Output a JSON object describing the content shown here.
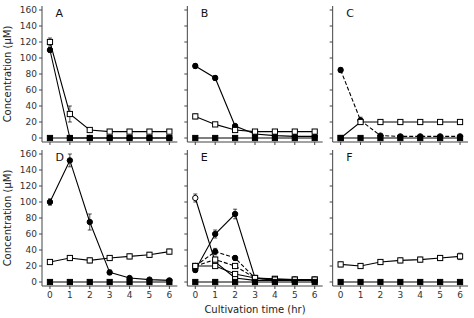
{
  "chart_data": [
    {
      "type": "line",
      "title": "A",
      "ylabel": "Concentration (μM)",
      "x": [
        0,
        1,
        2,
        3,
        4,
        5,
        6
      ],
      "xlim": [
        -0.4,
        6.4
      ],
      "xticks": [
        0,
        1,
        2,
        3,
        4,
        5,
        6
      ],
      "ylim": [
        -5,
        165
      ],
      "yticks": [
        0,
        20,
        40,
        60,
        80,
        100,
        120,
        140,
        160
      ],
      "tick_labels": "y",
      "grid": false,
      "series": [
        {
          "values": [
            110,
            0,
            0,
            0,
            0,
            0,
            0
          ],
          "errors": [
            3,
            0,
            0,
            0,
            0,
            0,
            0
          ],
          "marker": "filled-circle",
          "line_style": "solid",
          "color": "black"
        },
        {
          "values": [
            120,
            30,
            10,
            8,
            8,
            8,
            8
          ],
          "errors": [
            5,
            10,
            2,
            1,
            1,
            1,
            1
          ],
          "marker": "open-square",
          "line_style": "solid",
          "color": "black"
        },
        {
          "values": [
            0,
            0,
            0,
            0,
            0,
            0,
            0
          ],
          "errors": [
            0,
            0,
            0,
            0,
            0,
            0,
            0
          ],
          "marker": "filled-square",
          "line_style": "solid",
          "color": "black"
        }
      ]
    },
    {
      "type": "line",
      "title": "B",
      "x": [
        0,
        1,
        2,
        3,
        4,
        5,
        6
      ],
      "xlim": [
        -0.4,
        6.4
      ],
      "xticks": [
        0,
        1,
        2,
        3,
        4,
        5,
        6
      ],
      "ylim": [
        -5,
        165
      ],
      "yticks": [
        0,
        20,
        40,
        60,
        80,
        100,
        120,
        140,
        160
      ],
      "tick_labels": false,
      "grid": false,
      "series": [
        {
          "values": [
            90,
            75,
            15,
            5,
            3,
            2,
            2
          ],
          "errors": [
            3,
            3,
            2,
            1,
            1,
            1,
            1
          ],
          "marker": "filled-circle",
          "line_style": "solid",
          "color": "black"
        },
        {
          "values": [
            27,
            17,
            10,
            8,
            8,
            8,
            8
          ],
          "errors": [
            3,
            2,
            1,
            1,
            1,
            1,
            1
          ],
          "marker": "open-square",
          "line_style": "solid",
          "color": "black"
        },
        {
          "values": [
            0,
            0,
            0,
            0,
            0,
            0,
            0
          ],
          "errors": [
            0,
            0,
            0,
            0,
            0,
            0,
            0
          ],
          "marker": "filled-square",
          "line_style": "solid",
          "color": "black"
        }
      ]
    },
    {
      "type": "line",
      "title": "C",
      "x": [
        0,
        1,
        2,
        3,
        4,
        5,
        6
      ],
      "xlim": [
        -0.4,
        6.4
      ],
      "xticks": [
        0,
        1,
        2,
        3,
        4,
        5,
        6
      ],
      "ylim": [
        -5,
        165
      ],
      "yticks": [
        0,
        20,
        40,
        60,
        80,
        100,
        120,
        140,
        160
      ],
      "tick_labels": false,
      "grid": false,
      "series": [
        {
          "values": [
            85,
            22,
            3,
            2,
            2,
            2,
            2
          ],
          "errors": [
            3,
            4,
            1,
            1,
            1,
            1,
            1
          ],
          "marker": "filled-circle",
          "line_style": "dashed",
          "color": "black"
        },
        {
          "values": [
            0,
            20,
            20,
            20,
            20,
            20,
            20
          ],
          "errors": [
            0,
            2,
            2,
            2,
            2,
            2,
            2
          ],
          "marker": "open-square",
          "line_style": "solid",
          "color": "black"
        },
        {
          "values": [
            0,
            0,
            0,
            0,
            0,
            0,
            0
          ],
          "errors": [
            0,
            0,
            0,
            0,
            0,
            0,
            0
          ],
          "marker": "filled-square",
          "line_style": "solid",
          "color": "black"
        }
      ]
    },
    {
      "type": "line",
      "title": "D",
      "ylabel": "Concentration (μM)",
      "x": [
        0,
        1,
        2,
        3,
        4,
        5,
        6
      ],
      "xlim": [
        -0.4,
        6.4
      ],
      "xticks": [
        0,
        1,
        2,
        3,
        4,
        5,
        6
      ],
      "ylim": [
        -5,
        165
      ],
      "yticks": [
        0,
        20,
        40,
        60,
        80,
        100,
        120,
        140,
        160
      ],
      "grid": false,
      "series": [
        {
          "values": [
            100,
            152,
            75,
            12,
            5,
            3,
            2
          ],
          "errors": [
            4,
            8,
            10,
            3,
            1,
            1,
            1
          ],
          "marker": "filled-circle",
          "line_style": "solid",
          "color": "black"
        },
        {
          "values": [
            25,
            30,
            27,
            30,
            32,
            34,
            38
          ],
          "errors": [
            3,
            3,
            3,
            3,
            3,
            3,
            3
          ],
          "marker": "open-square",
          "line_style": "solid",
          "color": "black"
        },
        {
          "values": [
            0,
            0,
            0,
            0,
            0,
            0,
            0
          ],
          "errors": [
            0,
            0,
            0,
            0,
            0,
            0,
            0
          ],
          "marker": "filled-square",
          "line_style": "solid",
          "color": "black"
        }
      ]
    },
    {
      "type": "line",
      "title": "E",
      "xlabel": "Cultivation time (hr)",
      "x": [
        0,
        1,
        2,
        3,
        4,
        5,
        6
      ],
      "xlim": [
        -0.4,
        6.4
      ],
      "xticks": [
        0,
        1,
        2,
        3,
        4,
        5,
        6
      ],
      "ylim": [
        -5,
        165
      ],
      "yticks": [
        0,
        20,
        40,
        60,
        80,
        100,
        120,
        140,
        160
      ],
      "tick_labels": "x",
      "grid": false,
      "series": [
        {
          "values": [
            105,
            25,
            5,
            2,
            2,
            2,
            2
          ],
          "errors": [
            5,
            3,
            1,
            1,
            1,
            1,
            1
          ],
          "marker": "open-circle",
          "line_style": "solid",
          "color": "black"
        },
        {
          "values": [
            15,
            60,
            85,
            5,
            2,
            2,
            2
          ],
          "errors": [
            3,
            5,
            6,
            2,
            1,
            1,
            1
          ],
          "marker": "filled-circle",
          "line_style": "solid",
          "color": "black"
        },
        {
          "values": [
            20,
            20,
            10,
            5,
            4,
            3,
            3
          ],
          "errors": [
            2,
            2,
            2,
            1,
            1,
            1,
            1
          ],
          "marker": "open-square",
          "line_style": "solid",
          "color": "black"
        },
        {
          "values": [
            20,
            38,
            30,
            5,
            3,
            3,
            3
          ],
          "errors": [
            2,
            4,
            3,
            1,
            1,
            1,
            1
          ],
          "marker": "filled-circle",
          "line_style": "dashed",
          "color": "black"
        },
        {
          "values": [
            20,
            28,
            20,
            5,
            3,
            3,
            3
          ],
          "errors": [
            2,
            3,
            2,
            1,
            1,
            1,
            1
          ],
          "marker": "open-square",
          "line_style": "dashed",
          "color": "black"
        },
        {
          "values": [
            0,
            0,
            0,
            0,
            0,
            0,
            0
          ],
          "errors": [
            0,
            0,
            0,
            0,
            0,
            0,
            0
          ],
          "marker": "filled-square",
          "line_style": "solid",
          "color": "black"
        }
      ]
    },
    {
      "type": "line",
      "title": "F",
      "x": [
        0,
        1,
        2,
        3,
        4,
        5,
        6
      ],
      "xlim": [
        -0.4,
        6.4
      ],
      "xticks": [
        0,
        1,
        2,
        3,
        4,
        5,
        6
      ],
      "ylim": [
        -5,
        165
      ],
      "yticks": [
        0,
        20,
        40,
        60,
        80,
        100,
        120,
        140,
        160
      ],
      "tick_labels": "x",
      "grid": false,
      "series": [
        {
          "values": [
            22,
            20,
            25,
            27,
            28,
            30,
            32
          ],
          "errors": [
            3,
            3,
            3,
            3,
            3,
            3,
            4
          ],
          "marker": "open-square",
          "line_style": "solid",
          "color": "black"
        },
        {
          "values": [
            0,
            0,
            0,
            0,
            0,
            0,
            0
          ],
          "errors": [
            0,
            0,
            0,
            0,
            0,
            0,
            0
          ],
          "marker": "filled-square",
          "line_style": "solid",
          "color": "black"
        }
      ]
    }
  ]
}
